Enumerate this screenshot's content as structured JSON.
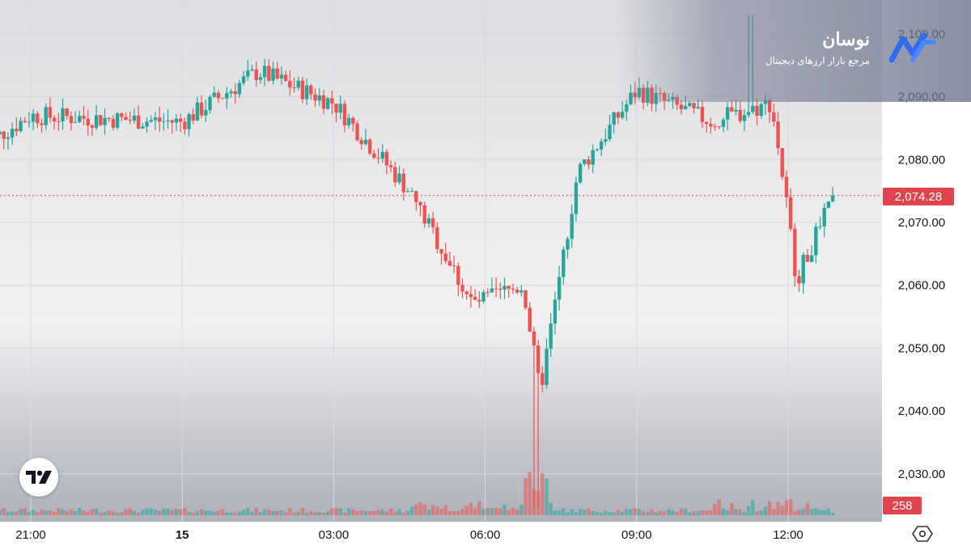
{
  "chart_data": {
    "type": "candlestick",
    "title": "",
    "xlabel": "",
    "ylabel": "",
    "ylim": [
      2024.5,
      2103
    ],
    "y_ticks": [
      2030,
      2040,
      2050,
      2060,
      2070,
      2080,
      2090,
      2100
    ],
    "y_tick_labels": [
      "2,030.00",
      "2,040.00",
      "2,050.00",
      "2,060.00",
      "2,070.00",
      "2,080.00",
      "2,090.00",
      "2,100.00"
    ],
    "x_tick_labels": [
      "21:00",
      "15",
      "03:00",
      "06:00",
      "09:00",
      "12:00"
    ],
    "last_price": 2074.28,
    "last_price_label": "2,074.28",
    "last_volume_label": "258",
    "up_color": "#26a69a",
    "down_color": "#ef5350",
    "grid": true,
    "segments": [
      {
        "from": "20:00",
        "to": "21:00",
        "start": 2082,
        "end": 2087
      },
      {
        "from": "21:00",
        "to": "00:00",
        "start": 2087,
        "end": 2086
      },
      {
        "from": "00:00",
        "to": "01:30",
        "start": 2086,
        "end": 2094
      },
      {
        "from": "01:30",
        "to": "03:00",
        "start": 2094,
        "end": 2089
      },
      {
        "from": "03:00",
        "to": "04:30",
        "start": 2089,
        "end": 2075
      },
      {
        "from": "04:30",
        "to": "05:45",
        "start": 2075,
        "end": 2057
      },
      {
        "from": "05:45",
        "to": "06:45",
        "start": 2057,
        "end": 2060
      },
      {
        "from": "06:45",
        "to": "07:05",
        "start": 2060,
        "end": 2043
      },
      {
        "from": "07:05",
        "to": "07:50",
        "start": 2043,
        "end": 2078
      },
      {
        "from": "07:50",
        "to": "09:00",
        "start": 2078,
        "end": 2091
      },
      {
        "from": "09:00",
        "to": "10:30",
        "start": 2091,
        "end": 2086
      },
      {
        "from": "10:30",
        "to": "11:40",
        "start": 2086,
        "end": 2089
      },
      {
        "from": "11:40",
        "to": "11:55",
        "start": 2089,
        "end": 2076
      },
      {
        "from": "11:55",
        "to": "12:10",
        "start": 2076,
        "end": 2061
      },
      {
        "from": "12:10",
        "to": "12:55",
        "start": 2061,
        "end": 2074.28
      }
    ],
    "notable": {
      "session_high": 2103,
      "session_low": 2024.5,
      "low_time": "07:00",
      "high_time": "11:15",
      "volume_spike_time": "07:00"
    }
  },
  "watermark": {
    "brand_name": "نوسان",
    "tagline": "مرجع بازار ارزهای دیجیتال",
    "logo_icon": "nowsan-logo-icon"
  },
  "tv_logo_icon": "tradingview-logo-icon",
  "settings_icon": "chart-settings-icon"
}
